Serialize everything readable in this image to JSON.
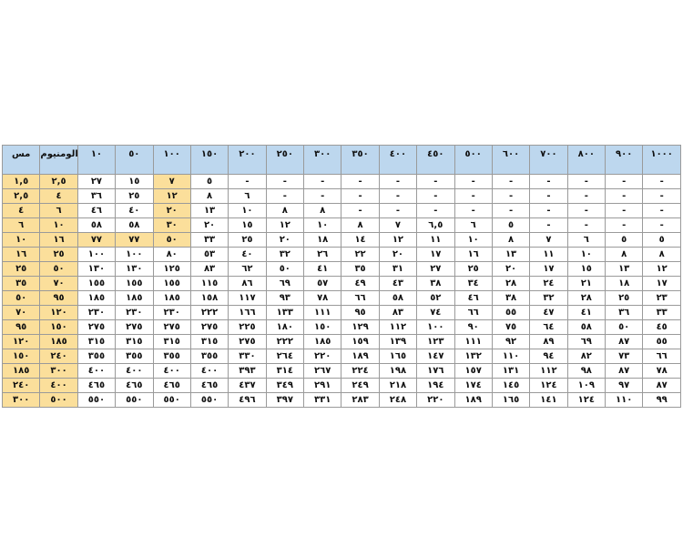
{
  "colors": {
    "header_blue": "#bdd7ee",
    "highlight_yellow": "#fbdf9b"
  },
  "table": {
    "headers": [
      "مس",
      "الومنيوم",
      "١٠",
      "٥٠",
      "١٠٠",
      "١٥٠",
      "٢٠٠",
      "٢٥٠",
      "٣٠٠",
      "٣٥٠",
      "٤٠٠",
      "٤٥٠",
      "٥٠٠",
      "٦٠٠",
      "٧٠٠",
      "٨٠٠",
      "٩٠٠",
      "١٠٠٠"
    ],
    "rows": [
      [
        "١,٥",
        "٢,٥",
        "٢٧",
        "١٥",
        "٧",
        "٥",
        "-",
        "-",
        "-",
        "-",
        "-",
        "-",
        "-",
        "-",
        "-",
        "-",
        "-",
        "-"
      ],
      [
        "٢,٥",
        "٤",
        "٣٦",
        "٢٥",
        "١٢",
        "٨",
        "٦",
        "-",
        "-",
        "-",
        "-",
        "-",
        "-",
        "-",
        "-",
        "-",
        "-",
        "-"
      ],
      [
        "٤",
        "٦",
        "٤٦",
        "٤٠",
        "٢٠",
        "١٣",
        "١٠",
        "٨",
        "٨",
        "-",
        "-",
        "-",
        "-",
        "-",
        "-",
        "-",
        "-",
        "-"
      ],
      [
        "٦",
        "١٠",
        "٥٨",
        "٥٨",
        "٣٠",
        "٢٠",
        "١٥",
        "١٢",
        "١٠",
        "٨",
        "٧",
        "٦,٥",
        "٦",
        "٥",
        "-",
        "-",
        "-",
        "-"
      ],
      [
        "١٠",
        "١٦",
        "٧٧",
        "٧٧",
        "٥٠",
        "٣٣",
        "٢٥",
        "٢٠",
        "١٨",
        "١٤",
        "١٢",
        "١١",
        "١٠",
        "٨",
        "٧",
        "٦",
        "٥",
        "٥"
      ],
      [
        "١٦",
        "٢٥",
        "١٠٠",
        "١٠٠",
        "٨٠",
        "٥٣",
        "٤٠",
        "٣٢",
        "٢٦",
        "٢٢",
        "٢٠",
        "١٧",
        "١٦",
        "١٣",
        "١١",
        "١٠",
        "٨",
        "٨"
      ],
      [
        "٢٥",
        "٥٠",
        "١٣٠",
        "١٣٠",
        "١٢٥",
        "٨٣",
        "٦٢",
        "٥٠",
        "٤١",
        "٣٥",
        "٣١",
        "٢٧",
        "٢٥",
        "٢٠",
        "١٧",
        "١٥",
        "١٣",
        "١٢"
      ],
      [
        "٣٥",
        "٧٠",
        "١٥٥",
        "١٥٥",
        "١٥٥",
        "١١٥",
        "٨٦",
        "٦٩",
        "٥٧",
        "٤٩",
        "٤٣",
        "٣٨",
        "٣٤",
        "٢٨",
        "٢٤",
        "٢١",
        "١٨",
        "١٧"
      ],
      [
        "٥٠",
        "٩٥",
        "١٨٥",
        "١٨٥",
        "١٨٥",
        "١٥٨",
        "١١٧",
        "٩٣",
        "٧٨",
        "٦٦",
        "٥٨",
        "٥٢",
        "٤٦",
        "٣٨",
        "٣٢",
        "٢٨",
        "٢٥",
        "٢٣"
      ],
      [
        "٧٠",
        "١٢٠",
        "٢٣٠",
        "٢٣٠",
        "٢٣٠",
        "٢٢٢",
        "١٦٦",
        "١٣٣",
        "١١١",
        "٩٥",
        "٨٣",
        "٧٤",
        "٦٦",
        "٥٥",
        "٤٧",
        "٤١",
        "٣٦",
        "٣٣"
      ],
      [
        "٩٥",
        "١٥٠",
        "٢٧٥",
        "٢٧٥",
        "٢٧٥",
        "٢٧٥",
        "٢٢٥",
        "١٨٠",
        "١٥٠",
        "١٢٩",
        "١١٢",
        "١٠٠",
        "٩٠",
        "٧٥",
        "٦٤",
        "٥٨",
        "٥٠",
        "٤٥"
      ],
      [
        "١٢٠",
        "١٨٥",
        "٣١٥",
        "٣١٥",
        "٣١٥",
        "٣١٥",
        "٢٧٥",
        "٢٢٢",
        "١٨٥",
        "١٥٩",
        "١٣٩",
        "١٢٣",
        "١١١",
        "٩٢",
        "٨٩",
        "٦٩",
        "٨٧",
        "٥٥"
      ],
      [
        "١٥٠",
        "٢٤٠",
        "٣٥٥",
        "٣٥٥",
        "٣٥٥",
        "٣٥٥",
        "٣٣٠",
        "٢٦٤",
        "٢٢٠",
        "١٨٩",
        "١٦٥",
        "١٤٧",
        "١٣٢",
        "١١٠",
        "٩٤",
        "٨٢",
        "٧٣",
        "٦٦"
      ],
      [
        "١٨٥",
        "٣٠٠",
        "٤٠٠",
        "٤٠٠",
        "٤٠٠",
        "٤٠٠",
        "٣٩٣",
        "٣١٤",
        "٢٦٧",
        "٢٢٤",
        "١٩٨",
        "١٧٦",
        "١٥٧",
        "١٣١",
        "١١٢",
        "٩٨",
        "٨٧",
        "٧٨"
      ],
      [
        "٢٤٠",
        "٤٠٠",
        "٤٦٥",
        "٤٦٥",
        "٤٦٥",
        "٤٦٥",
        "٤٣٧",
        "٣٤٩",
        "٢٩١",
        "٢٤٩",
        "٢١٨",
        "١٩٤",
        "١٧٤",
        "١٤٥",
        "١٢٤",
        "١٠٩",
        "٩٧",
        "٨٧"
      ],
      [
        "٣٠٠",
        "٥٠٠",
        "٥٥٠",
        "٥٥٠",
        "٥٥٠",
        "٥٥٠",
        "٤٩٦",
        "٣٩٧",
        "٣٣١",
        "٢٨٣",
        "٢٤٨",
        "٢٢٠",
        "١٨٩",
        "١٦٥",
        "١٤١",
        "١٢٤",
        "١١٠",
        "٩٩"
      ]
    ]
  }
}
